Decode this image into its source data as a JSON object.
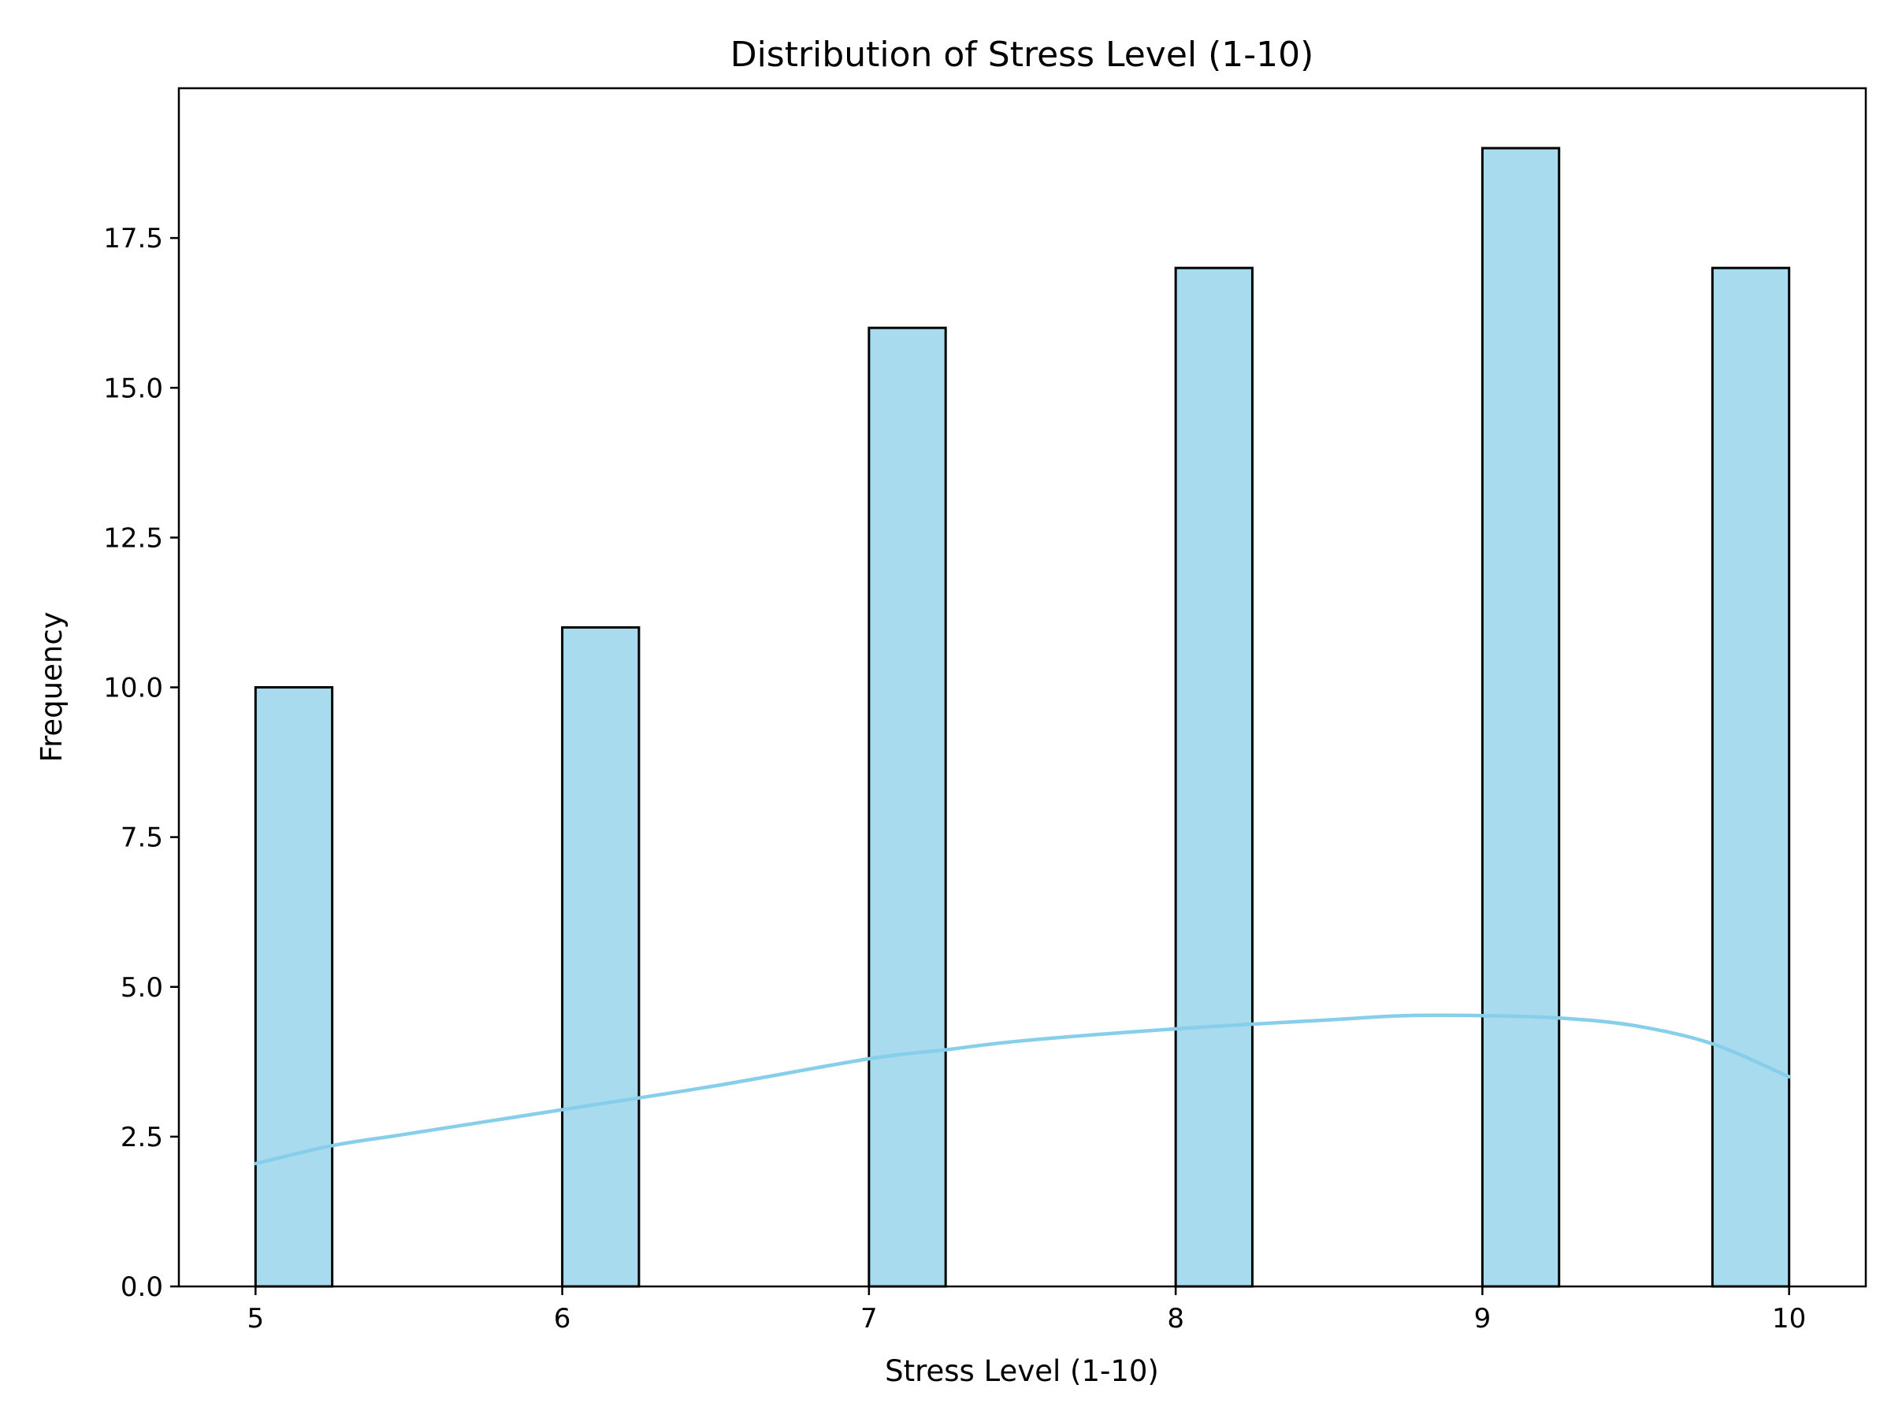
{
  "chart_data": {
    "type": "bar",
    "title": "Distribution of Stress Level (1-10)",
    "xlabel": "Stress Level (1-10)",
    "ylabel": "Frequency",
    "xlim": [
      4.75,
      10.25
    ],
    "ylim": [
      0,
      20
    ],
    "x_ticks": [
      5,
      6,
      7,
      8,
      9,
      10
    ],
    "y_ticks": [
      0,
      2.5,
      5,
      7.5,
      10,
      12.5,
      15,
      17.5
    ],
    "y_tick_labels": [
      "0.0",
      "2.5",
      "5.0",
      "7.5",
      "10.0",
      "12.5",
      "15.0",
      "17.5"
    ],
    "bins": [
      {
        "x0": 5.0,
        "x1": 5.25,
        "count": 10
      },
      {
        "x0": 6.0,
        "x1": 6.25,
        "count": 11
      },
      {
        "x0": 7.0,
        "x1": 7.25,
        "count": 16
      },
      {
        "x0": 8.0,
        "x1": 8.25,
        "count": 17
      },
      {
        "x0": 9.0,
        "x1": 9.25,
        "count": 19
      },
      {
        "x0": 9.75,
        "x1": 10.0,
        "count": 17
      }
    ],
    "kde": {
      "x": [
        5.0,
        5.25,
        5.5,
        6.0,
        6.5,
        7.0,
        7.25,
        7.5,
        8.0,
        8.5,
        8.75,
        9.0,
        9.25,
        9.5,
        9.75,
        10.0
      ],
      "y": [
        2.05,
        2.35,
        2.55,
        2.95,
        3.35,
        3.8,
        3.95,
        4.1,
        4.3,
        4.45,
        4.52,
        4.52,
        4.48,
        4.35,
        4.05,
        3.5
      ]
    },
    "bar_color": "#a8dbee",
    "kde_color": "#87ceeb",
    "grid": false,
    "legend": "none"
  }
}
